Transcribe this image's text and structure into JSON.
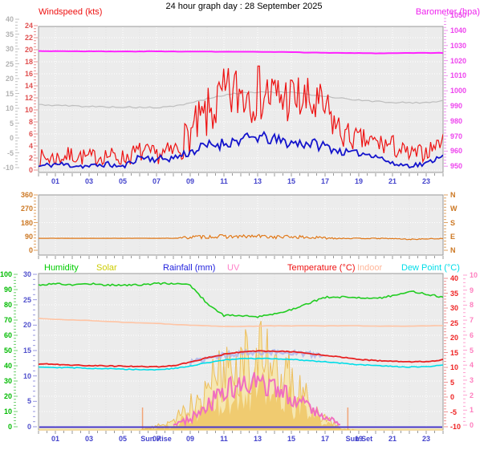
{
  "title": "24 hour graph day : 28 September 2025",
  "x_axis": {
    "hours_range": [
      0,
      24
    ],
    "tick_hours": [
      1,
      3,
      5,
      7,
      9,
      11,
      13,
      15,
      17,
      19,
      21,
      23
    ],
    "tick_labels": [
      "01",
      "03",
      "05",
      "07",
      "09",
      "11",
      "13",
      "15",
      "17",
      "19",
      "21",
      "23"
    ],
    "label_color": "#4444cc"
  },
  "sun": {
    "rise_label": "Sun Rise",
    "set_label": "Sun Set",
    "rise_hour": 6.17,
    "set_hour": 18.35,
    "marker_color": "#f2a477"
  },
  "chart_data": [
    {
      "type": "line",
      "name": "windspeed-barometer",
      "label_left": "Windspeed (kts)",
      "label_left_color": "#ee1111",
      "label_right": "Barometer (hpa)",
      "label_right_color": "#ee22ee",
      "axes": {
        "left_outer": {
          "name": "temperature-scale-c",
          "color": "#b2b2b2",
          "ticks": [
            40,
            35,
            30,
            25,
            20,
            15,
            10,
            5,
            0,
            -5,
            -10
          ]
        },
        "left_inner": {
          "name": "windspeed-kts",
          "color": "#e05050",
          "ticks": [
            24,
            22,
            20,
            18,
            16,
            14,
            12,
            10,
            8,
            6,
            4,
            2,
            0
          ]
        },
        "right": {
          "name": "barometer-hpa",
          "color": "#ee44ee",
          "ticks": [
            1050,
            1040,
            1030,
            1020,
            1010,
            1000,
            990,
            980,
            970,
            960,
            950
          ]
        }
      },
      "x": [
        0,
        1,
        2,
        3,
        4,
        5,
        6,
        7,
        8,
        9,
        10,
        11,
        12,
        13,
        14,
        15,
        16,
        17,
        18,
        19,
        20,
        21,
        22,
        23,
        24
      ],
      "series": [
        {
          "name": "wind-gust",
          "color": "#ee1111",
          "axis": "kts",
          "values": [
            2,
            2,
            2.5,
            2,
            2.5,
            2,
            3,
            2.5,
            3,
            6,
            9,
            12,
            13,
            13.5,
            12,
            12,
            11,
            10,
            6,
            5,
            4.5,
            4,
            2.5,
            3,
            5
          ],
          "jitter": [
            1.5,
            1.5,
            1.5,
            1.5,
            1.5,
            1.5,
            1.8,
            1.5,
            2,
            3.5,
            4.5,
            5,
            5.5,
            5.5,
            5,
            4.5,
            4.5,
            4,
            2.5,
            2,
            2,
            2,
            1.5,
            1.5,
            1
          ]
        },
        {
          "name": "wind-speed",
          "color": "#1414cc",
          "axis": "kts",
          "values": [
            0.6,
            1,
            0.8,
            0.6,
            1,
            0.5,
            2.2,
            1.8,
            2,
            3,
            4,
            4.5,
            5,
            5.5,
            5,
            4.5,
            4.5,
            4,
            3,
            2.8,
            2.5,
            1,
            0.8,
            1,
            2.6
          ],
          "jitter": [
            0.4,
            0.5,
            0.5,
            0.4,
            0.5,
            0.4,
            0.6,
            0.6,
            0.6,
            0.8,
            1,
            1,
            1,
            1,
            1,
            1,
            1,
            0.9,
            0.6,
            0.5,
            0.5,
            0.4,
            0.4,
            0.5,
            0.3
          ]
        },
        {
          "name": "temperature-trace",
          "color": "#bdbdbd",
          "axis": "tmpTop",
          "values": [
            11.2,
            11,
            10.8,
            10.6,
            10.5,
            10.4,
            10.3,
            10.2,
            10.6,
            11.8,
            13.2,
            14.4,
            15.2,
            15.5,
            15.4,
            15.3,
            14.7,
            14.1,
            13.4,
            12.7,
            12.3,
            12,
            11.9,
            11.9,
            12.6
          ],
          "jitter": 0.25
        },
        {
          "name": "barometer",
          "color": "#ff22ff",
          "axis": "baro",
          "values": [
            1026.4,
            1026.3,
            1026.3,
            1026.2,
            1026.1,
            1026.1,
            1026.1,
            1026.2,
            1026.1,
            1026,
            1026,
            1025.9,
            1025.9,
            1025.8,
            1025.7,
            1025.6,
            1025.4,
            1025.2,
            1025.1,
            1025,
            1024.9,
            1024.9,
            1025,
            1025.1,
            1025.1
          ],
          "jitter": 0.12
        }
      ]
    },
    {
      "type": "line",
      "name": "wind-direction",
      "axes": {
        "left": {
          "name": "direction-degrees",
          "color": "#cc7722",
          "ticks": [
            360,
            270,
            180,
            90,
            0
          ]
        },
        "right": {
          "name": "direction-compass",
          "color": "#cc7722",
          "labels": [
            "N",
            "W",
            "S",
            "E",
            "N"
          ]
        }
      },
      "x": [
        0,
        1,
        2,
        3,
        4,
        5,
        6,
        7,
        8,
        9,
        10,
        11,
        12,
        13,
        14,
        15,
        16,
        17,
        18,
        19,
        20,
        21,
        22,
        23,
        24
      ],
      "series": [
        {
          "name": "wind-direction",
          "color": "#e07818",
          "axis": "dir",
          "values": [
            78,
            78,
            78,
            78,
            78,
            78,
            78,
            78,
            78,
            85,
            88,
            90,
            88,
            92,
            86,
            88,
            83,
            80,
            78,
            77,
            77,
            76,
            71,
            74,
            76
          ],
          "jitter": [
            0.5,
            0.5,
            0.5,
            0.5,
            0.5,
            0.5,
            0.5,
            0.5,
            0.8,
            11,
            12,
            12,
            12,
            12,
            11,
            11,
            10,
            8,
            4,
            2.5,
            2.5,
            2.5,
            3,
            2.5,
            2
          ]
        }
      ]
    },
    {
      "type": "mixed",
      "name": "temperature-humidity-solar",
      "legend": [
        {
          "label": "Humidity",
          "color": "#00cc00"
        },
        {
          "label": "Solar",
          "color": "#cccc00"
        },
        {
          "label": "Rainfall (mm)",
          "color": "#2222dd"
        },
        {
          "label": "UV",
          "color": "#ff80c8"
        },
        {
          "label": "Temperature (°C)",
          "color": "#ee1111"
        },
        {
          "label": "Indoor",
          "color": "#ffb699"
        },
        {
          "label": "Dew Point (°C)",
          "color": "#00dde8"
        }
      ],
      "axes": {
        "left_outer": {
          "name": "humidity-pct",
          "color": "#00bb00",
          "ticks": [
            100,
            90,
            80,
            70,
            60,
            50,
            40,
            30,
            20,
            10,
            0
          ]
        },
        "left_inner": {
          "name": "rainfall-mm",
          "color": "#5050cc",
          "ticks": [
            30,
            25,
            20,
            15,
            10,
            5,
            0
          ]
        },
        "right_inner": {
          "name": "temperature-c",
          "color": "#ee2222",
          "ticks": [
            40,
            35,
            30,
            25,
            20,
            15,
            10,
            5,
            0,
            -5,
            -10
          ]
        },
        "right_outer": {
          "name": "uv-index",
          "color": "#ff7fbf",
          "ticks": [
            10,
            9,
            8,
            7,
            6,
            5,
            4,
            3,
            2,
            1,
            0
          ]
        }
      },
      "x": [
        0,
        1,
        2,
        3,
        4,
        5,
        6,
        7,
        8,
        9,
        10,
        11,
        12,
        13,
        14,
        15,
        16,
        17,
        18,
        19,
        20,
        21,
        22,
        23,
        24
      ],
      "series": [
        {
          "name": "humidity",
          "color": "#22cc22",
          "axis": "hum",
          "values": [
            93,
            94,
            93,
            94,
            93,
            93,
            93,
            94,
            94,
            93,
            81,
            73,
            73,
            72,
            74,
            77,
            81,
            85,
            85,
            85,
            84,
            86,
            89,
            87,
            85
          ],
          "jitter": 0.6
        },
        {
          "name": "indoor",
          "color": "#ffc4a4",
          "axis": "tmp",
          "values": [
            26.5,
            26.2,
            26,
            25.8,
            25.5,
            25.2,
            25,
            24.8,
            24.5,
            24.2,
            24,
            23.8,
            23.8,
            23.9,
            24,
            24,
            24,
            24,
            24,
            24,
            23.9,
            23.9,
            23.9,
            24,
            24.1
          ],
          "jitter": 0.05
        },
        {
          "name": "solar",
          "fill": "#f6e7ac",
          "fill_inner": "#f0c868",
          "stroke": "#ecba4e",
          "axis": "solar",
          "values": [
            0,
            0,
            0,
            0,
            0,
            0,
            0,
            2,
            6,
            15,
            27,
            38,
            45,
            48,
            38,
            32,
            20,
            8,
            0.5,
            0,
            0,
            0,
            0,
            0,
            0
          ],
          "jitter": [
            0,
            0,
            0,
            0,
            0,
            0,
            0,
            1.5,
            4,
            9,
            15,
            20,
            24,
            25,
            22,
            18,
            12,
            5,
            0.5,
            0,
            0,
            0,
            0,
            0,
            0
          ]
        },
        {
          "name": "uv",
          "color": "#f06ec0",
          "axis": "uv",
          "values": [
            null,
            null,
            null,
            null,
            null,
            null,
            null,
            null,
            0,
            0.4,
            1.3,
            2.2,
            2.7,
            2.8,
            2.4,
            1.9,
            1.3,
            0.6,
            0,
            null,
            null,
            null,
            null,
            null,
            null
          ],
          "jitter": [
            0,
            0,
            0,
            0,
            0,
            0,
            0,
            0,
            0.1,
            0.3,
            0.6,
            0.8,
            0.8,
            0.8,
            0.7,
            0.6,
            0.5,
            0.3,
            0.05,
            0,
            0,
            0,
            0,
            0,
            0
          ]
        },
        {
          "name": "windchill-band",
          "color": "#a8b0ee",
          "axis": "tmp",
          "values": [
            null,
            null,
            null,
            null,
            null,
            null,
            null,
            null,
            null,
            11.5,
            12.9,
            14.1,
            14.9,
            15.2,
            15.1,
            15,
            14.4,
            13.8,
            null,
            null,
            null,
            null,
            null,
            null,
            null
          ],
          "jitter": 0.9
        },
        {
          "name": "dew-point",
          "color": "#00dde8",
          "axis": "tmp",
          "values": [
            10.2,
            10,
            9.9,
            9.7,
            9.6,
            9.4,
            9.3,
            9.2,
            9.6,
            10.4,
            11.6,
            12.5,
            12.9,
            13,
            12.9,
            12.7,
            12.3,
            11.9,
            11.4,
            10.9,
            10.6,
            10.3,
            10.1,
            10.2,
            10.7
          ],
          "jitter": 0.15
        },
        {
          "name": "temperature",
          "color": "#e82222",
          "axis": "tmp",
          "values": [
            11.2,
            11,
            10.8,
            10.6,
            10.5,
            10.4,
            10.3,
            10.2,
            10.6,
            11.8,
            13.2,
            14.4,
            15.2,
            15.5,
            15.4,
            15.3,
            14.7,
            14.1,
            13.4,
            12.7,
            12.3,
            12,
            11.9,
            11.9,
            12.6
          ],
          "jitter": 0.15
        },
        {
          "name": "rainfall",
          "color": "#4838cc",
          "axis": "rain",
          "values": [
            0,
            0,
            0,
            0,
            0,
            0,
            0,
            0,
            0,
            0,
            0,
            0,
            0,
            0,
            0,
            0,
            0,
            0,
            0,
            0,
            0,
            0,
            0,
            0,
            0
          ],
          "jitter": 0
        }
      ]
    }
  ]
}
